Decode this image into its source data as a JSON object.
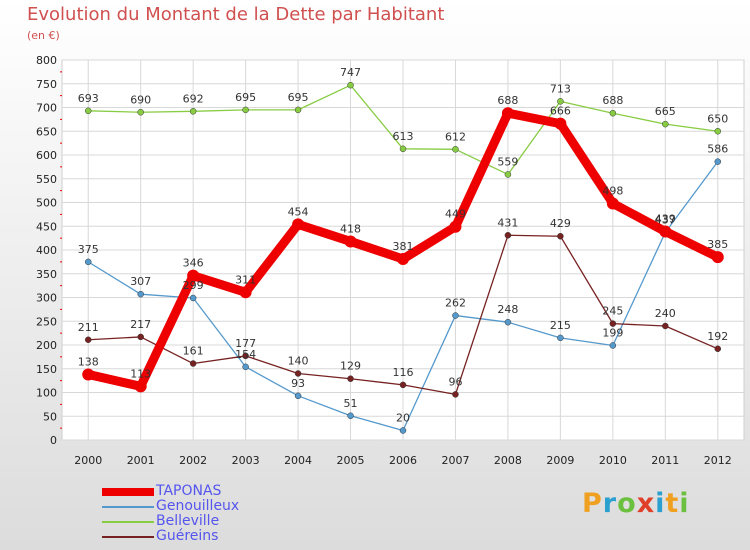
{
  "header": {
    "title": "Evolution du Montant de la Dette par Habitant",
    "unit": "(en €)"
  },
  "brand": {
    "letters": [
      "P",
      "r",
      "o",
      "x",
      "i",
      "t",
      "i"
    ],
    "colors": [
      "#f0a020",
      "#2aa0d0",
      "#6cc040",
      "#e0402a",
      "#2aa0d0",
      "#f0a020",
      "#6cc040"
    ]
  },
  "colors": {
    "TAPONAS": "#ee0000",
    "Genouilleux": "#5599cc",
    "Belleville": "#88cc44",
    "Guéreins": "#772222"
  },
  "chart_data": {
    "type": "line",
    "title": "Evolution du Montant de la Dette par Habitant",
    "subtitle": "(en €)",
    "x": [
      "2000",
      "2001",
      "2002",
      "2003",
      "2004",
      "2005",
      "2006",
      "2007",
      "2008",
      "2009",
      "2010",
      "2011",
      "2012"
    ],
    "ylim": [
      0,
      800
    ],
    "yticks": [
      0,
      50,
      100,
      150,
      200,
      250,
      300,
      350,
      400,
      450,
      500,
      550,
      600,
      650,
      700,
      750,
      800
    ],
    "grid": true,
    "legend": "bottom-left",
    "series": [
      {
        "name": "TAPONAS",
        "values": [
          138,
          113,
          346,
          311,
          454,
          418,
          381,
          449,
          688,
          666,
          498,
          439,
          385
        ]
      },
      {
        "name": "Genouilleux",
        "values": [
          375,
          307,
          299,
          154,
          93,
          51,
          20,
          262,
          248,
          215,
          199,
          437,
          586
        ]
      },
      {
        "name": "Belleville",
        "values": [
          693,
          690,
          692,
          695,
          695,
          747,
          613,
          612,
          559,
          713,
          688,
          665,
          650
        ]
      },
      {
        "name": "Guéreins",
        "values": [
          211,
          217,
          161,
          177,
          140,
          129,
          116,
          96,
          431,
          429,
          245,
          240,
          192
        ]
      }
    ]
  }
}
